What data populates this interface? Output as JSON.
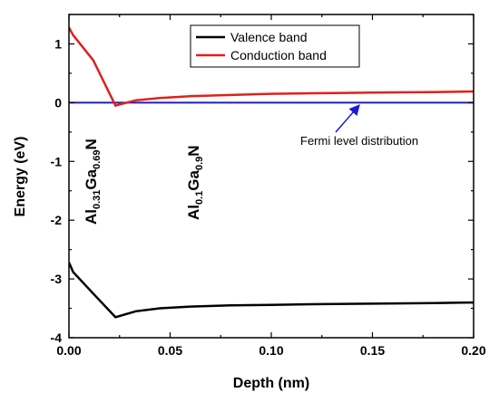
{
  "chart_data": {
    "type": "line",
    "xlabel": "Depth (nm)",
    "ylabel": "Energy (eV)",
    "xlim": [
      0,
      0.2
    ],
    "ylim": [
      -4,
      1.5
    ],
    "x_ticks": [
      "0.00",
      "0.05",
      "0.10",
      "0.15",
      "0.20"
    ],
    "y_ticks": [
      "-4",
      "-3",
      "-2",
      "-1",
      "0",
      "1"
    ],
    "grid": false,
    "legend_position": "top-right",
    "series": [
      {
        "name": "Valence band",
        "color": "#000000",
        "x": [
          0.0,
          0.002,
          0.012,
          0.023,
          0.033,
          0.045,
          0.06,
          0.08,
          0.1,
          0.12,
          0.15,
          0.18,
          0.2
        ],
        "y": [
          -2.72,
          -2.88,
          -3.25,
          -3.65,
          -3.55,
          -3.5,
          -3.47,
          -3.45,
          -3.44,
          -3.43,
          -3.42,
          -3.41,
          -3.4
        ]
      },
      {
        "name": "Conduction band",
        "color": "#e0201b",
        "x": [
          0.0,
          0.002,
          0.012,
          0.023,
          0.033,
          0.045,
          0.06,
          0.08,
          0.1,
          0.12,
          0.15,
          0.18,
          0.2
        ],
        "y": [
          1.28,
          1.15,
          0.72,
          -0.05,
          0.04,
          0.08,
          0.11,
          0.13,
          0.15,
          0.16,
          0.17,
          0.18,
          0.19
        ]
      },
      {
        "name": "",
        "color": "#1a1ad6",
        "x": [
          0.0,
          0.2
        ],
        "y": [
          0.0,
          0.0
        ]
      }
    ],
    "annotations": {
      "fermi": {
        "text": "Fermi level distribution",
        "arrow_target": [
          0.143,
          0.0
        ]
      },
      "region1": {
        "base": "Al",
        "sub1": "0.31",
        "mid": "Ga",
        "sub2": "0.69",
        "end": "N"
      },
      "region2": {
        "base": "Al",
        "sub1": "0.1",
        "mid": "Ga",
        "sub2": "0.9",
        "end": "N"
      }
    }
  }
}
